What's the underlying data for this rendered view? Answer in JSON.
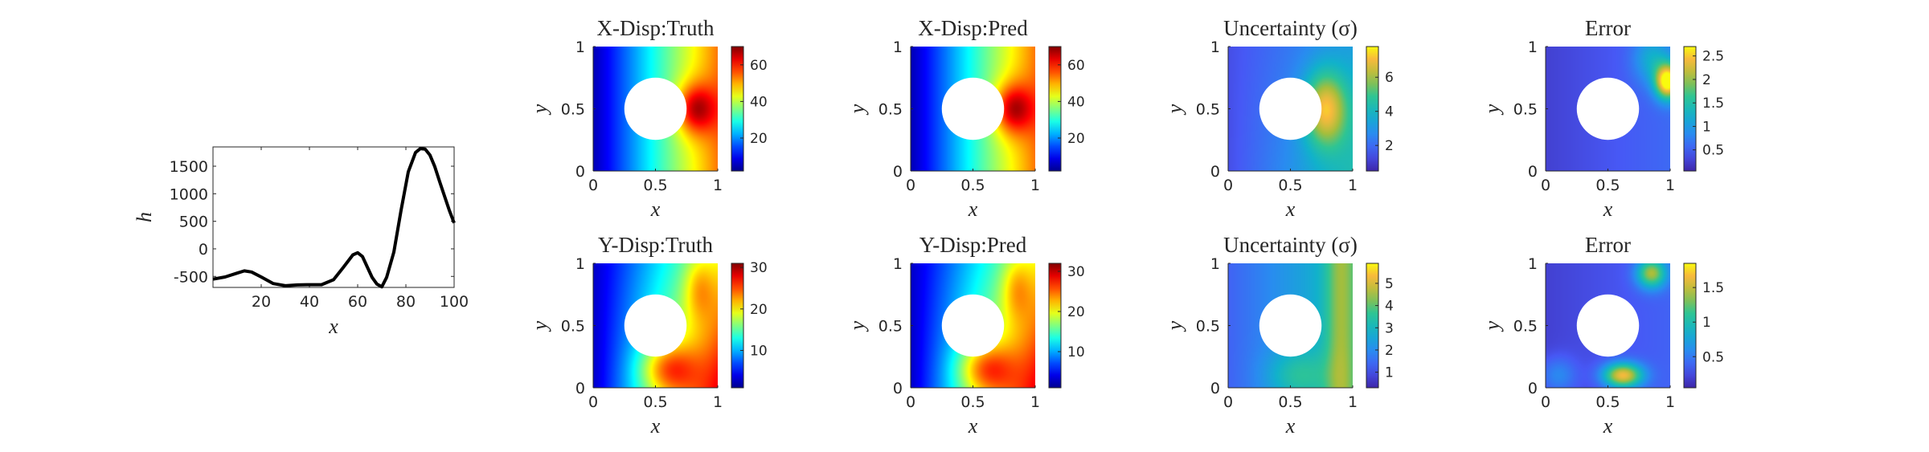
{
  "chart_data": [
    {
      "id": "line",
      "type": "line",
      "title": "",
      "xlabel": "x",
      "ylabel": "h",
      "xlim": [
        0,
        100
      ],
      "ylim": [
        -700,
        1850
      ],
      "xticks": [
        20,
        40,
        60,
        80,
        100
      ],
      "yticks": [
        -500,
        0,
        500,
        1000,
        1500
      ],
      "grid": false,
      "legend": "none",
      "line_color": "#000000",
      "series": [
        {
          "x": [
            0,
            5,
            10,
            13,
            16,
            20,
            25,
            30,
            35,
            40,
            45,
            50,
            54,
            58,
            60,
            62,
            66,
            68,
            70,
            72,
            75,
            78,
            81,
            84,
            86,
            88,
            90,
            92,
            94,
            96,
            98,
            100
          ],
          "y": [
            -550,
            -510,
            -440,
            -400,
            -420,
            -510,
            -630,
            -670,
            -655,
            -650,
            -650,
            -560,
            -340,
            -110,
            -70,
            -140,
            -520,
            -640,
            -690,
            -520,
            -60,
            700,
            1400,
            1750,
            1820,
            1810,
            1700,
            1490,
            1220,
            960,
            700,
            470
          ]
        }
      ]
    },
    {
      "id": "x-truth",
      "type": "heatmap",
      "title": "X-Disp:Truth",
      "xlabel": "x",
      "ylabel": "y",
      "xlim": [
        0,
        1
      ],
      "ylim": [
        0,
        1
      ],
      "xticks": [
        0,
        0.5,
        1
      ],
      "yticks": [
        0,
        0.5,
        1
      ],
      "colormap": "jet",
      "crange": [
        2,
        70
      ],
      "cticks": [
        20,
        40,
        60
      ],
      "hole": {
        "cx": 0.5,
        "cy": 0.5,
        "r": 0.25
      },
      "field": "x-disp"
    },
    {
      "id": "x-pred",
      "type": "heatmap",
      "title": "X-Disp:Pred",
      "xlabel": "x",
      "ylabel": "y",
      "xlim": [
        0,
        1
      ],
      "ylim": [
        0,
        1
      ],
      "xticks": [
        0,
        0.5,
        1
      ],
      "yticks": [
        0,
        0.5,
        1
      ],
      "colormap": "jet",
      "crange": [
        2,
        70
      ],
      "cticks": [
        20,
        40,
        60
      ],
      "hole": {
        "cx": 0.5,
        "cy": 0.5,
        "r": 0.25
      },
      "field": "x-disp"
    },
    {
      "id": "x-unc",
      "type": "heatmap",
      "title": "Uncertainty (σ)",
      "xlabel": "x",
      "ylabel": "y",
      "xlim": [
        0,
        1
      ],
      "ylim": [
        0,
        1
      ],
      "xticks": [
        0,
        0.5,
        1
      ],
      "yticks": [
        0,
        0.5,
        1
      ],
      "colormap": "parula",
      "crange": [
        0.5,
        7.8
      ],
      "cticks": [
        2,
        4,
        6
      ],
      "hole": {
        "cx": 0.5,
        "cy": 0.5,
        "r": 0.25
      },
      "field": "x-unc"
    },
    {
      "id": "x-err",
      "type": "heatmap",
      "title": "Error",
      "xlabel": "x",
      "ylabel": "y",
      "xlim": [
        0,
        1
      ],
      "ylim": [
        0,
        1
      ],
      "xticks": [
        0,
        0.5,
        1
      ],
      "yticks": [
        0,
        0.5,
        1
      ],
      "colormap": "parula",
      "crange": [
        0.05,
        2.7
      ],
      "cticks": [
        0.5,
        1,
        1.5,
        2,
        2.5
      ],
      "hole": {
        "cx": 0.5,
        "cy": 0.5,
        "r": 0.25
      },
      "field": "x-err"
    },
    {
      "id": "y-truth",
      "type": "heatmap",
      "title": "Y-Disp:Truth",
      "xlabel": "x",
      "ylabel": "y",
      "xlim": [
        0,
        1
      ],
      "ylim": [
        0,
        1
      ],
      "xticks": [
        0,
        0.5,
        1
      ],
      "yticks": [
        0,
        0.5,
        1
      ],
      "colormap": "jet",
      "crange": [
        1,
        31
      ],
      "cticks": [
        10,
        20,
        30
      ],
      "hole": {
        "cx": 0.5,
        "cy": 0.5,
        "r": 0.25
      },
      "field": "y-disp"
    },
    {
      "id": "y-pred",
      "type": "heatmap",
      "title": "Y-Disp:Pred",
      "xlabel": "x",
      "ylabel": "y",
      "xlim": [
        0,
        1
      ],
      "ylim": [
        0,
        1
      ],
      "xticks": [
        0,
        0.5,
        1
      ],
      "yticks": [
        0,
        0.5,
        1
      ],
      "colormap": "jet",
      "crange": [
        1,
        32
      ],
      "cticks": [
        10,
        20,
        30
      ],
      "hole": {
        "cx": 0.5,
        "cy": 0.5,
        "r": 0.25
      },
      "field": "y-disp"
    },
    {
      "id": "y-unc",
      "type": "heatmap",
      "title": "Uncertainty (σ)",
      "xlabel": "x",
      "ylabel": "y",
      "xlim": [
        0,
        1
      ],
      "ylim": [
        0,
        1
      ],
      "xticks": [
        0,
        0.5,
        1
      ],
      "yticks": [
        0,
        0.5,
        1
      ],
      "colormap": "parula",
      "crange": [
        0.3,
        5.9
      ],
      "cticks": [
        1,
        2,
        3,
        4,
        5
      ],
      "hole": {
        "cx": 0.5,
        "cy": 0.5,
        "r": 0.25
      },
      "field": "y-unc"
    },
    {
      "id": "y-err",
      "type": "heatmap",
      "title": "Error",
      "xlabel": "x",
      "ylabel": "y",
      "xlim": [
        0,
        1
      ],
      "ylim": [
        0,
        1
      ],
      "xticks": [
        0,
        0.5,
        1
      ],
      "yticks": [
        0,
        0.5,
        1
      ],
      "colormap": "parula",
      "crange": [
        0.05,
        1.85
      ],
      "cticks": [
        0.5,
        1,
        1.5
      ],
      "hole": {
        "cx": 0.5,
        "cy": 0.5,
        "r": 0.25
      },
      "field": "y-err"
    }
  ]
}
